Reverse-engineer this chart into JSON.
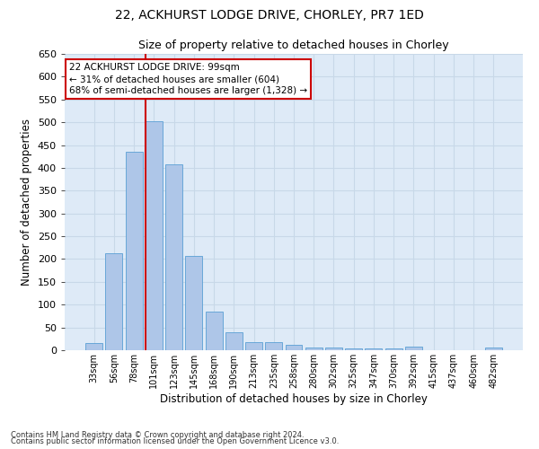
{
  "title1": "22, ACKHURST LODGE DRIVE, CHORLEY, PR7 1ED",
  "title2": "Size of property relative to detached houses in Chorley",
  "xlabel": "Distribution of detached houses by size in Chorley",
  "ylabel": "Number of detached properties",
  "categories": [
    "33sqm",
    "56sqm",
    "78sqm",
    "101sqm",
    "123sqm",
    "145sqm",
    "168sqm",
    "190sqm",
    "213sqm",
    "235sqm",
    "258sqm",
    "280sqm",
    "302sqm",
    "325sqm",
    "347sqm",
    "370sqm",
    "392sqm",
    "415sqm",
    "437sqm",
    "460sqm",
    "482sqm"
  ],
  "values": [
    15,
    212,
    435,
    503,
    407,
    207,
    85,
    39,
    18,
    18,
    11,
    6,
    5,
    4,
    4,
    4,
    7,
    0,
    0,
    0,
    5
  ],
  "bar_color": "#aec6e8",
  "bar_edge_color": "#5a9fd4",
  "vline_x_index": 3,
  "vline_color": "#cc0000",
  "annotation_line1": "22 ACKHURST LODGE DRIVE: 99sqm",
  "annotation_line2": "← 31% of detached houses are smaller (604)",
  "annotation_line3": "68% of semi-detached houses are larger (1,328) →",
  "annotation_box_color": "#ffffff",
  "annotation_box_edge": "#cc0000",
  "ylim": [
    0,
    650
  ],
  "yticks": [
    0,
    50,
    100,
    150,
    200,
    250,
    300,
    350,
    400,
    450,
    500,
    550,
    600,
    650
  ],
  "grid_color": "#c8d8e8",
  "bg_color": "#deeaf7",
  "footer1": "Contains HM Land Registry data © Crown copyright and database right 2024.",
  "footer2": "Contains public sector information licensed under the Open Government Licence v3.0."
}
